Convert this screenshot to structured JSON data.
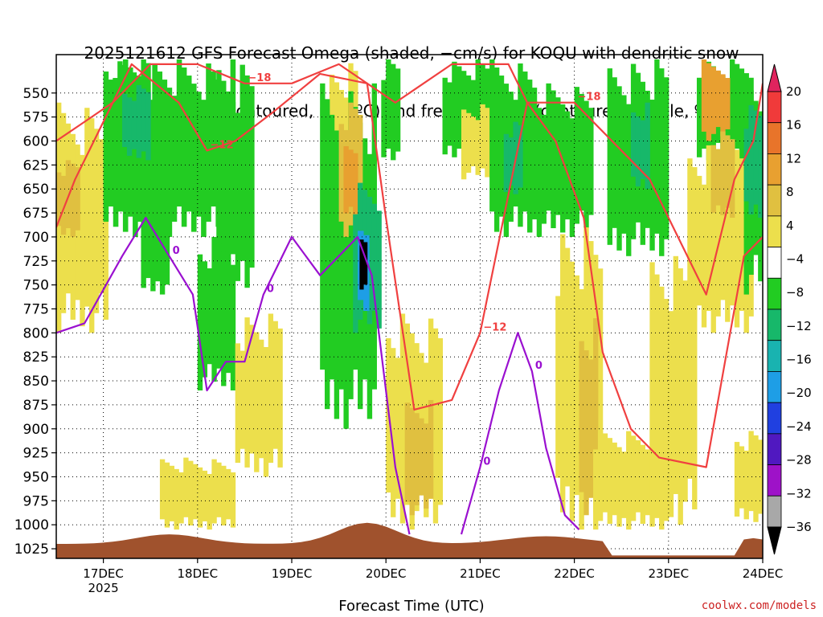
{
  "title": [
    "2025121612 GFS Forecast Omega (shaded, −cm/s) for KOQU with dendritic snow",
    "growth region (contoured, red, ºC) and freezing level (contoured, purple, ºC)"
  ],
  "credit": "coolwx.com/models",
  "chart_data": {
    "type": "heatmap",
    "title": "2025121612 GFS Forecast Omega (shaded, −cm/s) for KOQU with dendritic snow growth region (contoured, red, ºC) and freezing level (contoured, purple, ºC)",
    "xlabel": "Forecast Time (UTC)",
    "ylabel": "",
    "x_ticks": [
      {
        "t": 0.5,
        "label": "17DEC",
        "sub": "2025"
      },
      {
        "t": 1.5,
        "label": "18DEC"
      },
      {
        "t": 2.5,
        "label": "19DEC"
      },
      {
        "t": 3.5,
        "label": "20DEC"
      },
      {
        "t": 4.5,
        "label": "21DEC"
      },
      {
        "t": 5.5,
        "label": "22DEC"
      },
      {
        "t": 6.5,
        "label": "23DEC"
      },
      {
        "t": 7.5,
        "label": "24DEC"
      }
    ],
    "xlim_days": [
      0,
      7.5
    ],
    "y_ticks": [
      550,
      575,
      600,
      625,
      650,
      675,
      700,
      725,
      750,
      775,
      800,
      825,
      850,
      875,
      900,
      925,
      950,
      975,
      1000,
      1025
    ],
    "ylim_hpa": [
      510,
      1035
    ],
    "colorbar": {
      "labels": [
        "20",
        "16",
        "12",
        "8",
        "4",
        "−4",
        "−8",
        "−12",
        "−16",
        "−20",
        "−24",
        "−28",
        "−32",
        "−36"
      ],
      "colors": [
        "#e0245e",
        "#f03a3a",
        "#e8742a",
        "#e8a030",
        "#e0c040",
        "#ecdf4c",
        "#ffffff",
        "#22cc22",
        "#17b86a",
        "#19b3b0",
        "#1e9ee6",
        "#2040e0",
        "#5018c0",
        "#9e12c8",
        "#a8a8a8",
        "#000000"
      ]
    },
    "omega_blobs": [
      {
        "t0": 0.0,
        "t1": 0.55,
        "p0": 560,
        "p1": 800,
        "v": 4
      },
      {
        "t0": 0.0,
        "t1": 0.25,
        "p0": 620,
        "p1": 700,
        "v": 8
      },
      {
        "t0": 0.5,
        "t1": 1.9,
        "p0": 515,
        "p1": 700,
        "v": -8
      },
      {
        "t0": 0.6,
        "t1": 1.0,
        "p0": 515,
        "p1": 600,
        "v": -8
      },
      {
        "t0": 0.7,
        "t1": 1.0,
        "p0": 540,
        "p1": 620,
        "v": -12
      },
      {
        "t0": 1.7,
        "t1": 2.1,
        "p0": 515,
        "p1": 760,
        "v": -8
      },
      {
        "t0": 0.9,
        "t1": 1.2,
        "p0": 640,
        "p1": 760,
        "v": -8
      },
      {
        "t0": 1.5,
        "t1": 1.9,
        "p0": 700,
        "p1": 860,
        "v": -8
      },
      {
        "t0": 1.1,
        "t1": 1.9,
        "p0": 930,
        "p1": 1005,
        "v": 4
      },
      {
        "t0": 1.9,
        "t1": 2.4,
        "p0": 780,
        "p1": 950,
        "v": 4
      },
      {
        "t0": 2.9,
        "t1": 3.2,
        "p0": 515,
        "p1": 690,
        "v": 4
      },
      {
        "t0": 2.8,
        "t1": 3.4,
        "p0": 540,
        "p1": 900,
        "v": -8
      },
      {
        "t0": 3.0,
        "t1": 3.25,
        "p0": 560,
        "p1": 700,
        "v": 8
      },
      {
        "t0": 3.05,
        "t1": 3.2,
        "p0": 600,
        "p1": 680,
        "v": 12
      },
      {
        "t0": 3.15,
        "t1": 3.45,
        "p0": 640,
        "p1": 800,
        "v": -12
      },
      {
        "t0": 3.2,
        "t1": 3.32,
        "p0": 680,
        "p1": 780,
        "v": -20
      },
      {
        "t0": 3.22,
        "t1": 3.3,
        "p0": 700,
        "p1": 760,
        "v": -36
      },
      {
        "t0": 3.45,
        "t1": 3.65,
        "p0": 515,
        "p1": 620,
        "v": -8
      },
      {
        "t0": 3.5,
        "t1": 4.1,
        "p0": 780,
        "p1": 1005,
        "v": 4
      },
      {
        "t0": 3.7,
        "t1": 4.0,
        "p0": 870,
        "p1": 990,
        "v": 8
      },
      {
        "t0": 4.1,
        "t1": 4.6,
        "p0": 515,
        "p1": 620,
        "v": -8
      },
      {
        "t0": 4.3,
        "t1": 4.6,
        "p0": 560,
        "p1": 640,
        "v": 4
      },
      {
        "t0": 4.6,
        "t1": 5.1,
        "p0": 515,
        "p1": 700,
        "v": -8
      },
      {
        "t0": 4.75,
        "t1": 4.95,
        "p0": 580,
        "p1": 660,
        "v": -12
      },
      {
        "t0": 5.0,
        "t1": 5.7,
        "p0": 540,
        "p1": 700,
        "v": -8
      },
      {
        "t0": 5.3,
        "t1": 5.8,
        "p0": 690,
        "p1": 1005,
        "v": 4
      },
      {
        "t0": 5.55,
        "t1": 5.75,
        "p0": 780,
        "p1": 990,
        "v": 8
      },
      {
        "t0": 5.85,
        "t1": 6.5,
        "p0": 515,
        "p1": 720,
        "v": -8
      },
      {
        "t0": 5.7,
        "t1": 6.5,
        "p0": 900,
        "p1": 1005,
        "v": 4
      },
      {
        "t0": 6.1,
        "t1": 6.3,
        "p0": 560,
        "p1": 650,
        "v": -12
      },
      {
        "t0": 6.3,
        "t1": 6.8,
        "p0": 720,
        "p1": 1000,
        "v": 4
      },
      {
        "t0": 6.8,
        "t1": 7.4,
        "p0": 515,
        "p1": 620,
        "v": -8
      },
      {
        "t0": 6.7,
        "t1": 7.4,
        "p0": 600,
        "p1": 800,
        "v": 4
      },
      {
        "t0": 6.85,
        "t1": 7.15,
        "p0": 515,
        "p1": 600,
        "v": 12
      },
      {
        "t0": 6.95,
        "t1": 7.2,
        "p0": 590,
        "p1": 680,
        "v": 8
      },
      {
        "t0": 7.3,
        "t1": 7.5,
        "p0": 520,
        "p1": 760,
        "v": -8
      },
      {
        "t0": 7.3,
        "t1": 7.5,
        "p0": 560,
        "p1": 680,
        "v": -12
      },
      {
        "t0": 7.2,
        "t1": 7.5,
        "p0": 900,
        "p1": 1000,
        "v": 4
      }
    ],
    "contours": [
      {
        "name": "dgz_top",
        "color": "#f04040",
        "label": "−18",
        "points": [
          [
            0.0,
            600
          ],
          [
            0.3,
            580
          ],
          [
            0.6,
            560
          ],
          [
            1.0,
            520
          ],
          [
            1.5,
            520
          ],
          [
            2.0,
            540
          ],
          [
            2.5,
            540
          ],
          [
            3.0,
            520
          ],
          [
            3.6,
            560
          ],
          [
            4.2,
            520
          ],
          [
            4.8,
            520
          ],
          [
            5.0,
            560
          ],
          [
            5.5,
            560
          ],
          [
            5.9,
            600
          ],
          [
            6.3,
            640
          ],
          [
            6.6,
            700
          ],
          [
            6.9,
            760
          ],
          [
            7.0,
            720
          ],
          [
            7.2,
            640
          ],
          [
            7.4,
            600
          ],
          [
            7.5,
            540
          ]
        ]
      },
      {
        "name": "dgz_bottom",
        "color": "#f04040",
        "label": "−12",
        "points": [
          [
            0.0,
            690
          ],
          [
            0.2,
            640
          ],
          [
            0.5,
            580
          ],
          [
            0.8,
            520
          ],
          [
            1.3,
            560
          ],
          [
            1.6,
            610
          ],
          [
            1.9,
            600
          ],
          [
            2.3,
            570
          ],
          [
            2.8,
            530
          ],
          [
            3.3,
            540
          ],
          [
            3.5,
            680
          ],
          [
            3.8,
            880
          ],
          [
            4.2,
            870
          ],
          [
            4.5,
            800
          ],
          [
            5.0,
            560
          ],
          [
            5.3,
            600
          ],
          [
            5.6,
            680
          ],
          [
            5.8,
            820
          ],
          [
            6.1,
            900
          ],
          [
            6.4,
            930
          ],
          [
            6.9,
            940
          ],
          [
            7.1,
            830
          ],
          [
            7.3,
            720
          ],
          [
            7.5,
            700
          ]
        ]
      },
      {
        "name": "freezing_level",
        "color": "#9a10d0",
        "label": "0",
        "points": [
          [
            0.0,
            800
          ],
          [
            0.3,
            790
          ],
          [
            0.7,
            720
          ],
          [
            0.95,
            680
          ],
          [
            1.2,
            720
          ],
          [
            1.45,
            760
          ],
          [
            1.6,
            860
          ],
          [
            1.8,
            830
          ],
          [
            2.0,
            830
          ],
          [
            2.2,
            760
          ],
          [
            2.5,
            700
          ],
          [
            2.8,
            740
          ],
          [
            3.0,
            720
          ],
          [
            3.2,
            700
          ],
          [
            3.35,
            740
          ],
          [
            3.6,
            940
          ],
          [
            3.75,
            1010
          ]
        ]
      },
      {
        "name": "freezing_level_2",
        "color": "#9a10d0",
        "label": "0",
        "points": [
          [
            4.3,
            1010
          ],
          [
            4.5,
            940
          ],
          [
            4.7,
            860
          ],
          [
            4.9,
            800
          ],
          [
            5.05,
            840
          ],
          [
            5.2,
            920
          ],
          [
            5.4,
            990
          ],
          [
            5.55,
            1005
          ]
        ]
      }
    ],
    "terrain_color": "#a0522d"
  }
}
